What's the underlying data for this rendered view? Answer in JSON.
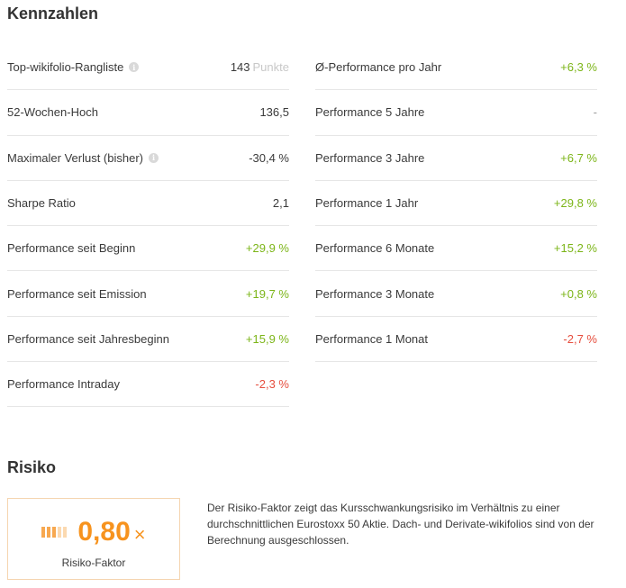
{
  "sections": {
    "kennzahlen": "Kennzahlen",
    "risiko": "Risiko"
  },
  "left_rows": [
    {
      "label": "Top-wikifolio-Rangliste",
      "info": true,
      "value": "143",
      "unit": "Punkte",
      "tone": "default"
    },
    {
      "label": "52-Wochen-Hoch",
      "info": false,
      "value": "136,5",
      "unit": "",
      "tone": "default"
    },
    {
      "label": "Maximaler Verlust (bisher)",
      "info": true,
      "value": "-30,4 %",
      "unit": "",
      "tone": "default"
    },
    {
      "label": "Sharpe Ratio",
      "info": false,
      "value": "2,1",
      "unit": "",
      "tone": "default"
    },
    {
      "label": "Performance seit Beginn",
      "info": false,
      "value": "+29,9 %",
      "unit": "",
      "tone": "pos"
    },
    {
      "label": "Performance seit Emission",
      "info": false,
      "value": "+19,7 %",
      "unit": "",
      "tone": "pos"
    },
    {
      "label": "Performance seit Jahresbeginn",
      "info": false,
      "value": "+15,9 %",
      "unit": "",
      "tone": "pos"
    },
    {
      "label": "Performance Intraday",
      "info": false,
      "value": "-2,3 %",
      "unit": "",
      "tone": "neg"
    }
  ],
  "right_rows": [
    {
      "label": "Ø-Performance pro Jahr",
      "value": "+6,3 %",
      "tone": "pos"
    },
    {
      "label": "Performance 5 Jahre",
      "value": "-",
      "tone": "neutral"
    },
    {
      "label": "Performance 3 Jahre",
      "value": "+6,7 %",
      "tone": "pos"
    },
    {
      "label": "Performance 1 Jahr",
      "value": "+29,8 %",
      "tone": "pos"
    },
    {
      "label": "Performance 6 Monate",
      "value": "+15,2 %",
      "tone": "pos"
    },
    {
      "label": "Performance 3 Monate",
      "value": "+0,8 %",
      "tone": "pos"
    },
    {
      "label": "Performance 1 Monat",
      "value": "-2,7 %",
      "tone": "neg"
    }
  ],
  "risk": {
    "value": "0,80",
    "multiplier": "×",
    "label": "Risiko-Faktor",
    "bars_filled": 3,
    "bars_total": 5,
    "description": "Der Risiko-Faktor zeigt das Kursschwankungsrisiko im Verhältnis zu einer durchschnittlichen Eurostoxx 50 Aktie. Dach- und Derivate-wikifolios sind von der Berechnung ausgeschlossen."
  },
  "colors": {
    "positive": "#7cb518",
    "negative": "#e64d3d",
    "accent": "#f7931e",
    "bar_filled": "#f7a850",
    "bar_empty": "#fbd9b0"
  }
}
